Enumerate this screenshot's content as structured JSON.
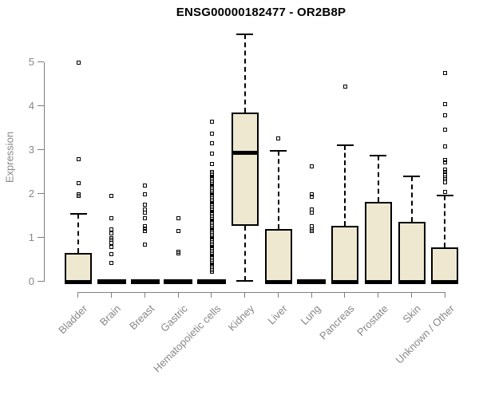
{
  "chart_data": {
    "type": "boxplot",
    "title": "ENSG00000182477 - OR2B8P",
    "ylabel": "Expression",
    "xlabel": "",
    "ylim": [
      0,
      5.7
    ],
    "yticks": [
      0,
      1,
      2,
      3,
      4,
      5
    ],
    "grid": false,
    "legend": false,
    "colors": {
      "box_fill": "#EDE8CF",
      "box_border": "#000000",
      "median": "#000000",
      "whisker": "#000000",
      "outlier": "#000000",
      "axis_line": "#7E7E7E",
      "axis_text": "#878787",
      "title": "#000000",
      "background": "#FFFFFF"
    },
    "categories": [
      "Bladder",
      "Brain",
      "Breast",
      "Gastric",
      "Hematopoietic cells",
      "Kidney",
      "Liver",
      "Lung",
      "Pancreas",
      "Prostate",
      "Skin",
      "Unknown / Other"
    ],
    "series": [
      {
        "label": "Bladder",
        "whisker_low": 0,
        "q1": 0,
        "median": 0,
        "q3": 0.65,
        "whisker_high": 1.55,
        "outliers": [
          5.0,
          2.8,
          2.24,
          2.0,
          1.95
        ]
      },
      {
        "label": "Brain",
        "whisker_low": 0,
        "q1": 0,
        "median": 0,
        "q3": 0,
        "whisker_high": 0,
        "outliers": [
          1.95,
          1.45,
          1.2,
          1.1,
          1.0,
          0.95,
          0.88,
          0.8,
          0.62,
          0.42
        ]
      },
      {
        "label": "Breast",
        "whisker_low": 0,
        "q1": 0,
        "median": 0,
        "q3": 0,
        "whisker_high": 0,
        "outliers": [
          2.2,
          2.0,
          1.75,
          1.65,
          1.58,
          1.45,
          1.27,
          1.21,
          1.15,
          0.84
        ]
      },
      {
        "label": "Gastric",
        "whisker_low": 0,
        "q1": 0,
        "median": 0,
        "q3": 0,
        "whisker_high": 0,
        "outliers": [
          1.45,
          1.16,
          0.69,
          0.64
        ]
      },
      {
        "label": "Hematopoietic cells",
        "whisker_low": 0,
        "q1": 0,
        "median": 0,
        "q3": 0,
        "whisker_high": 0,
        "outliers": [
          3.64,
          3.38,
          3.16,
          2.91,
          2.69,
          2.5,
          2.46,
          2.42,
          2.38,
          2.34,
          2.3,
          2.26,
          2.22,
          2.18,
          2.14,
          2.1,
          2.06,
          2.02,
          1.98,
          1.94,
          1.9,
          1.86,
          1.82,
          1.78,
          1.74,
          1.7,
          1.66,
          1.62,
          1.58,
          1.54,
          1.5,
          1.46,
          1.42,
          1.38,
          1.34,
          1.3,
          1.26,
          1.22,
          1.18,
          1.14,
          1.1,
          1.06,
          1.02,
          0.98,
          0.94,
          0.9,
          0.86,
          0.82,
          0.78,
          0.74,
          0.7,
          0.66,
          0.62,
          0.58,
          0.54,
          0.5,
          0.46,
          0.42,
          0.38,
          0.34,
          0.3,
          0.26,
          0.22
        ]
      },
      {
        "label": "Kidney",
        "whisker_low": 0.02,
        "q1": 1.27,
        "median": 2.93,
        "q3": 3.85,
        "whisker_high": 5.64,
        "outliers": []
      },
      {
        "label": "Liver",
        "whisker_low": 0,
        "q1": 0,
        "median": 0,
        "q3": 1.2,
        "whisker_high": 2.98,
        "outliers": [
          3.27
        ]
      },
      {
        "label": "Lung",
        "whisker_low": 0,
        "q1": 0,
        "median": 0,
        "q3": 0,
        "whisker_high": 0,
        "outliers": [
          2.62,
          2.0,
          1.93,
          1.65,
          1.58,
          1.27,
          1.2,
          1.15
        ]
      },
      {
        "label": "Pancreas",
        "whisker_low": 0,
        "q1": 0,
        "median": 0,
        "q3": 1.27,
        "whisker_high": 3.11,
        "outliers": [
          4.45
        ]
      },
      {
        "label": "Prostate",
        "whisker_low": 0,
        "q1": 0,
        "median": 0,
        "q3": 1.82,
        "whisker_high": 2.87,
        "outliers": []
      },
      {
        "label": "Skin",
        "whisker_low": 0,
        "q1": 0,
        "median": 0,
        "q3": 1.36,
        "whisker_high": 2.4,
        "outliers": []
      },
      {
        "label": "Unknown / Other",
        "whisker_low": 0,
        "q1": 0,
        "median": 0,
        "q3": 0.78,
        "whisker_high": 1.97,
        "outliers": [
          4.75,
          4.04,
          3.8,
          3.47,
          3.09,
          2.78,
          2.72,
          2.55,
          2.5,
          2.44,
          2.38,
          2.33,
          2.27,
          2.05
        ]
      }
    ]
  }
}
